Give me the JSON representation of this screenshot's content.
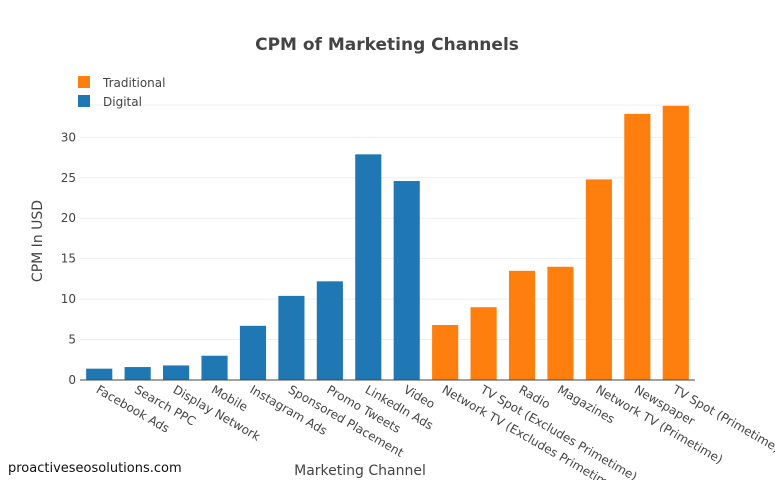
{
  "watermark": "proactiveseosolutions.com",
  "chart_data": {
    "type": "bar",
    "title": "CPM of Marketing Channels",
    "xlabel": "Marketing Channel",
    "ylabel": "CPM In USD",
    "ylim": [
      0,
      34
    ],
    "yticks": [
      0,
      5,
      10,
      15,
      20,
      25,
      30
    ],
    "grid": true,
    "legend_position": "top-left",
    "categories": [
      "Facebook Ads",
      "Search PPC",
      "Display Network",
      "Mobile",
      "Instagram Ads",
      "Sponsored Placement",
      "Promo Tweets",
      "LinkedIn Ads",
      "Video",
      "Network TV (Excludes Primetime)",
      "TV Spot (Excludes Primetime)",
      "Radio",
      "Magazines",
      "Network TV (Primetime)",
      "Newspaper",
      "TV Spot (Primetime)"
    ],
    "series": [
      {
        "name": "Traditional",
        "color": "#ff7f0e",
        "values": [
          null,
          null,
          null,
          null,
          null,
          null,
          null,
          null,
          null,
          6.8,
          9.0,
          13.5,
          14.0,
          24.8,
          32.9,
          33.9
        ]
      },
      {
        "name": "Digital",
        "color": "#1f77b4",
        "values": [
          1.4,
          1.6,
          1.8,
          3.0,
          6.7,
          10.4,
          12.2,
          27.9,
          24.6,
          null,
          null,
          null,
          null,
          null,
          null,
          null
        ]
      }
    ]
  }
}
